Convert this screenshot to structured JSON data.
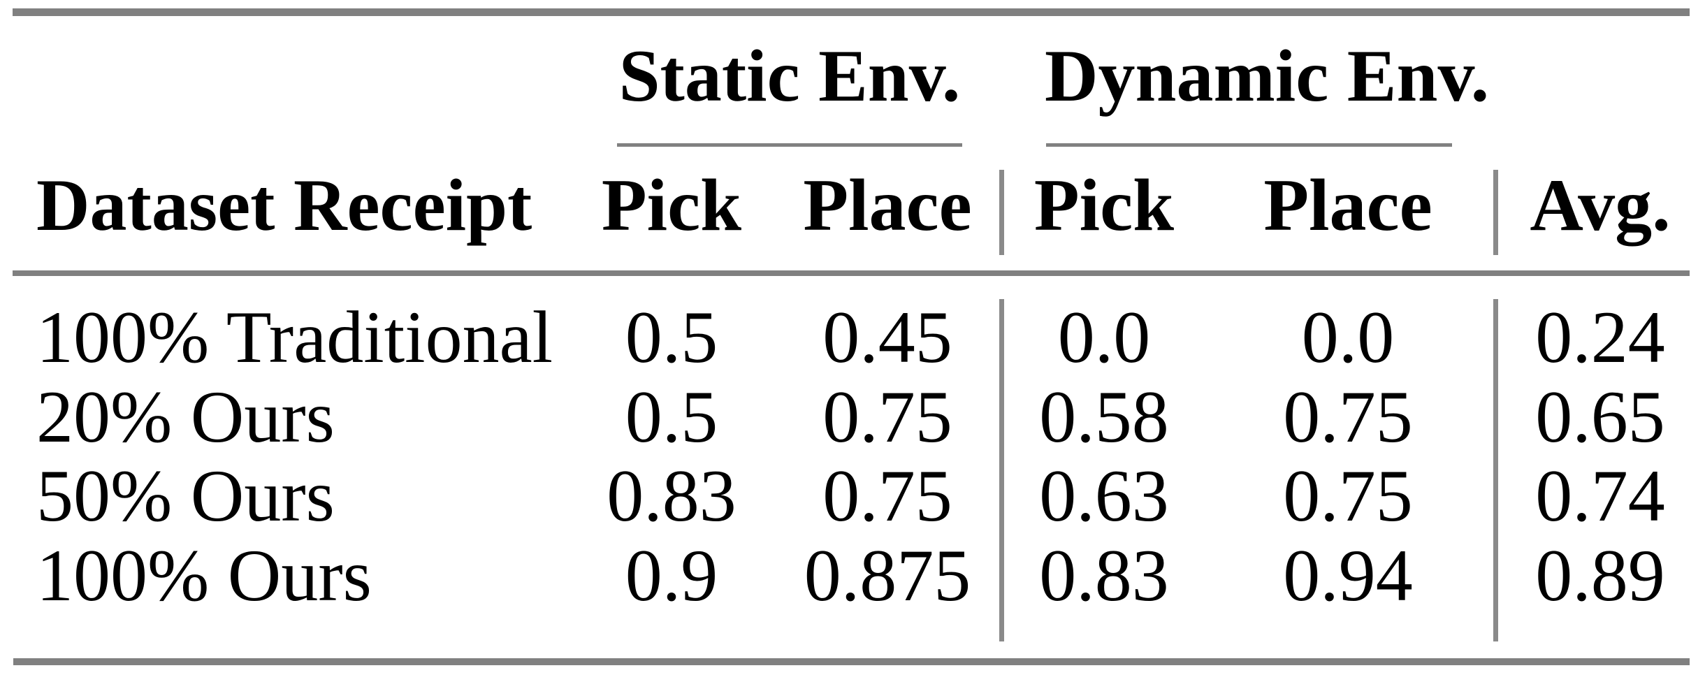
{
  "table": {
    "group_headers": [
      "Static Env.",
      "Dynamic Env."
    ],
    "header": {
      "label": "Dataset Receipt",
      "static_pick": "Pick",
      "static_place": "Place",
      "dynamic_pick": "Pick",
      "dynamic_place": "Place",
      "avg": "Avg."
    },
    "rows": [
      {
        "label": "100% Traditional",
        "values": [
          "0.5",
          "0.45",
          "0.0",
          "0.0",
          "0.24"
        ]
      },
      {
        "label": "20% Ours",
        "values": [
          "0.5",
          "0.75",
          "0.58",
          "0.75",
          "0.65"
        ]
      },
      {
        "label": "50% Ours",
        "values": [
          "0.83",
          "0.75",
          "0.63",
          "0.75",
          "0.74"
        ]
      },
      {
        "label": "100% Ours",
        "values": [
          "0.9",
          "0.875",
          "0.83",
          "0.94",
          "0.89"
        ]
      }
    ]
  },
  "colors": {
    "rule_gray": "#808080",
    "separator_gray": "#8a8a8a",
    "text": "#000000",
    "background": "#ffffff"
  }
}
